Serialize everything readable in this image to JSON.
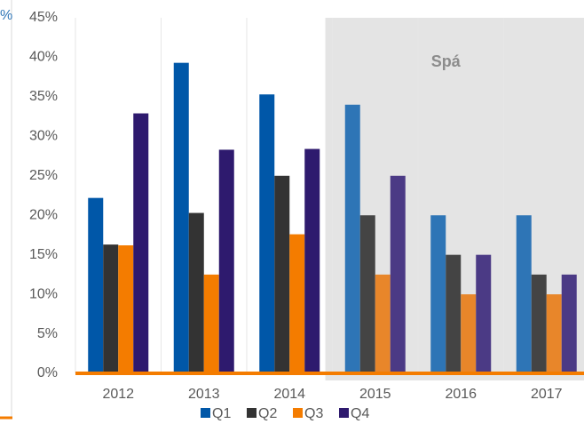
{
  "chart_data": {
    "type": "bar",
    "fragment_text": "%",
    "categories": [
      "2012",
      "2013",
      "2014",
      "2015",
      "2016",
      "2017"
    ],
    "series": [
      {
        "name": "Q1",
        "color": "#0057a8",
        "forecast_color": "#2e75b6",
        "values": [
          22.2,
          39.3,
          35.3,
          34,
          20,
          20
        ]
      },
      {
        "name": "Q2",
        "color": "#333333",
        "forecast_color": "#444444",
        "values": [
          16.3,
          20.3,
          25,
          20,
          15,
          12.5
        ]
      },
      {
        "name": "Q3",
        "color": "#f47c00",
        "forecast_color": "#e8862a",
        "values": [
          16.2,
          12.5,
          17.6,
          12.5,
          10,
          10
        ]
      },
      {
        "name": "Q4",
        "color": "#2e1a6e",
        "forecast_color": "#4b3a85",
        "values": [
          32.9,
          28.3,
          28.4,
          25,
          15,
          12.5
        ]
      }
    ],
    "forecast_start": 3,
    "forecast_label": "Spá",
    "ylim": [
      0,
      45
    ],
    "yticks": [
      {
        "value": 0,
        "label": "0%"
      },
      {
        "value": 5,
        "label": "5%"
      },
      {
        "value": 10,
        "label": "10%"
      },
      {
        "value": 15,
        "label": "15%"
      },
      {
        "value": 20,
        "label": "20%"
      },
      {
        "value": 25,
        "label": "25%"
      },
      {
        "value": 30,
        "label": "30%"
      },
      {
        "value": 35,
        "label": "35%"
      },
      {
        "value": 40,
        "label": "40%"
      },
      {
        "value": 45,
        "label": "45%"
      }
    ],
    "legend": "bottom"
  }
}
